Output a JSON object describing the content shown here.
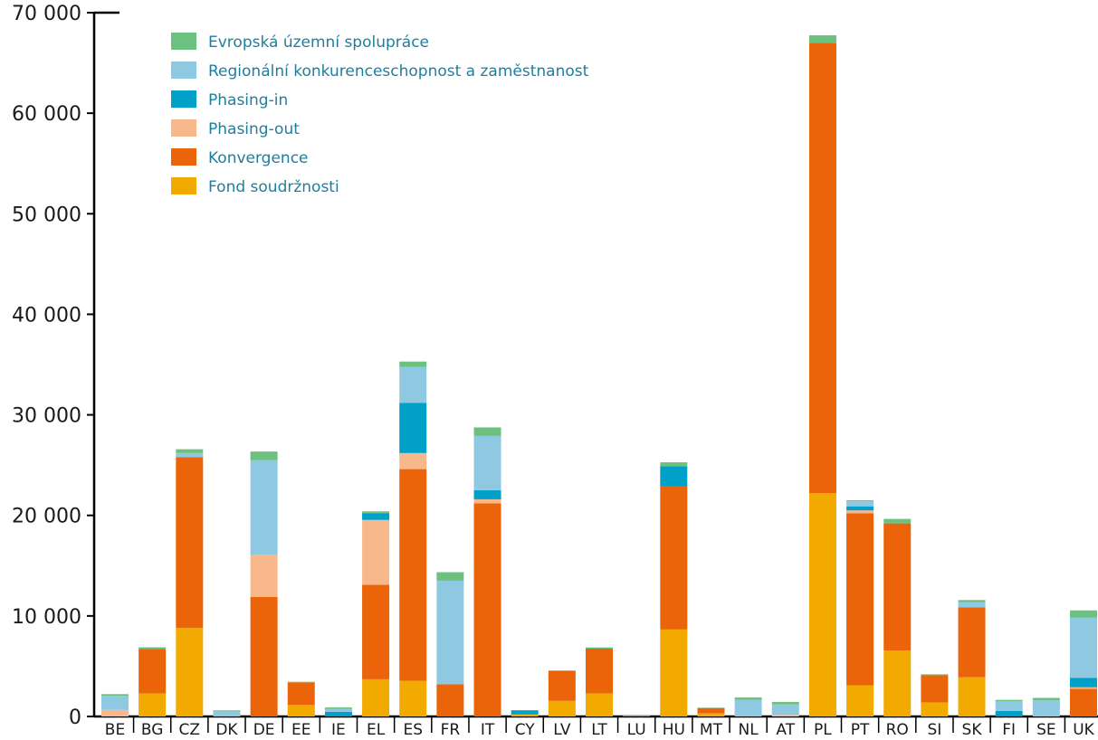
{
  "chart_data": {
    "type": "bar",
    "stacked": true,
    "title": "",
    "xlabel": "",
    "ylabel": "",
    "ylim": [
      0,
      70000
    ],
    "yticks": [
      0,
      10000,
      20000,
      30000,
      40000,
      50000,
      60000,
      70000
    ],
    "ytick_labels": [
      "0",
      "10 000",
      "20 000",
      "30 000",
      "40 000",
      "50 000",
      "60 000",
      "70 000"
    ],
    "grid": false,
    "legend_position": "top-left",
    "categories": [
      "BE",
      "BG",
      "CZ",
      "DK",
      "DE",
      "EE",
      "IE",
      "EL",
      "ES",
      "FR",
      "IT",
      "CY",
      "LV",
      "LT",
      "LU",
      "HU",
      "MT",
      "NL",
      "AT",
      "PL",
      "PT",
      "RO",
      "SI",
      "SK",
      "FI",
      "SE",
      "UK"
    ],
    "series": [
      {
        "name": "Fond soudržnosti",
        "color": "#f2a900",
        "values": [
          0,
          2300,
          8800,
          0,
          0,
          1150,
          0,
          3700,
          3550,
          0,
          0,
          200,
          1550,
          2300,
          0,
          8650,
          300,
          0,
          0,
          22200,
          3100,
          6550,
          1400,
          3900,
          0,
          0,
          0
        ]
      },
      {
        "name": "Konvergence",
        "color": "#eb6409",
        "values": [
          0,
          4400,
          17000,
          0,
          11900,
          2250,
          0,
          9400,
          21050,
          3200,
          21200,
          0,
          2950,
          4450,
          0,
          14250,
          550,
          0,
          0,
          44800,
          17100,
          12650,
          2700,
          6950,
          0,
          0,
          2750
        ]
      },
      {
        "name": "Phasing-out",
        "color": "#f9b78c",
        "values": [
          650,
          0,
          0,
          0,
          4200,
          0,
          0,
          6450,
          1600,
          0,
          400,
          0,
          0,
          0,
          0,
          0,
          0,
          0,
          150,
          0,
          300,
          0,
          0,
          0,
          0,
          0,
          150
        ]
      },
      {
        "name": "Phasing-in",
        "color": "#00a0c9",
        "values": [
          0,
          0,
          0,
          0,
          0,
          0,
          450,
          650,
          5000,
          0,
          900,
          400,
          0,
          0,
          0,
          2000,
          0,
          0,
          0,
          0,
          400,
          0,
          0,
          0,
          550,
          0,
          950
        ]
      },
      {
        "name": "Regionální konkurenceschopnost a zaměstnanost",
        "color": "#8fc8e1",
        "values": [
          1400,
          0,
          400,
          510,
          9400,
          0,
          300,
          0,
          3550,
          10300,
          5400,
          0,
          0,
          0,
          50,
          0,
          0,
          1650,
          1050,
          0,
          500,
          0,
          0,
          500,
          950,
          1600,
          6000
        ]
      },
      {
        "name": "Evropská územní spolupráce",
        "color": "#6cc17e",
        "values": [
          170,
          180,
          380,
          100,
          850,
          50,
          150,
          200,
          550,
          850,
          850,
          30,
          80,
          120,
          20,
          380,
          20,
          250,
          250,
          750,
          100,
          450,
          100,
          230,
          150,
          250,
          700
        ]
      }
    ]
  }
}
